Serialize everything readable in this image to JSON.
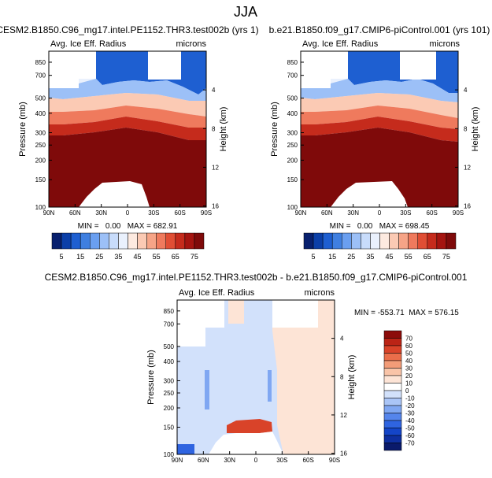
{
  "figure": {
    "title": "JJA"
  },
  "colors": {
    "cbar_abs": [
      "#08206e",
      "#0b3fa8",
      "#1e5fd1",
      "#3f7fe0",
      "#6a9ff0",
      "#9cc0f7",
      "#c8dcfb",
      "#eaf1fd",
      "#fdeae0",
      "#fbcab4",
      "#f6a487",
      "#ef7a5d",
      "#e04e34",
      "#c52b1c",
      "#a51410",
      "#7f0a0a"
    ],
    "cbar_diff": [
      "#0a1a6b",
      "#0e2fa0",
      "#1445c8",
      "#2f64e0",
      "#5585ec",
      "#80a7f2",
      "#aac5f7",
      "#d2e1fb",
      "#ffffff",
      "#fde4d6",
      "#f9c4a8",
      "#f39c78",
      "#ea6e4a",
      "#d94329",
      "#bb2416",
      "#8c0c0a"
    ],
    "fill_above": "#7f0a0a",
    "fill_high": "#0b3fa8",
    "fill_diff_bg": "#d2e1fb"
  },
  "chart_data": [
    {
      "type": "contour",
      "title": "CESM2.B1850.C96_mg17.intel.PE1152.THR3.test002b (yrs 1)",
      "left_label": "Avg. Ice Eff. Radius",
      "right_label": "microns",
      "ylabel": "Pressure (mb)",
      "y2label": "Height (km)",
      "x_ticks": [
        "90N",
        "60N",
        "30N",
        "0",
        "30S",
        "60S",
        "90S"
      ],
      "p_ticks": [
        100,
        150,
        200,
        250,
        300,
        400,
        500,
        700,
        850
      ],
      "z_ticks": [
        16,
        12,
        8,
        4
      ],
      "stats": "MIN =   0.00   MAX = 682.91",
      "colorbar_labels": [
        "5",
        "15",
        "25",
        "35",
        "45",
        "55",
        "65",
        "75"
      ]
    },
    {
      "type": "contour",
      "title": "b.e21.B1850.f09_g17.CMIP6-piControl.001 (yrs 101)",
      "left_label": "Avg. Ice Eff. Radius",
      "right_label": "microns",
      "ylabel": "Pressure (mb)",
      "y2label": "Height (km)",
      "x_ticks": [
        "90N",
        "60N",
        "30N",
        "0",
        "30S",
        "60S",
        "90S"
      ],
      "p_ticks": [
        100,
        150,
        200,
        250,
        300,
        400,
        500,
        700,
        850
      ],
      "z_ticks": [
        16,
        12,
        8,
        4
      ],
      "stats": "MIN =   0.00   MAX = 698.45",
      "colorbar_labels": [
        "5",
        "15",
        "25",
        "35",
        "45",
        "55",
        "65",
        "75"
      ]
    },
    {
      "type": "contour",
      "title": "CESM2.B1850.C96_mg17.intel.PE1152.THR3.test002b - b.e21.B1850.f09_g17.CMIP6-piControl.001",
      "left_label": "Avg. Ice Eff. Radius",
      "right_label": "microns",
      "ylabel": "Pressure (mb)",
      "y2label": "Height (km)",
      "x_ticks": [
        "90N",
        "60N",
        "30N",
        "0",
        "30S",
        "60S",
        "90S"
      ],
      "p_ticks": [
        100,
        150,
        200,
        250,
        300,
        400,
        500,
        700,
        850
      ],
      "z_ticks": [
        16,
        12,
        8,
        4
      ],
      "stats": "MIN = -553.71  MAX = 576.15",
      "colorbar_labels": [
        "70",
        "60",
        "50",
        "40",
        "30",
        "20",
        "10",
        "0",
        "-10",
        "-20",
        "-30",
        "-40",
        "-50",
        "-60",
        "-70"
      ]
    }
  ]
}
